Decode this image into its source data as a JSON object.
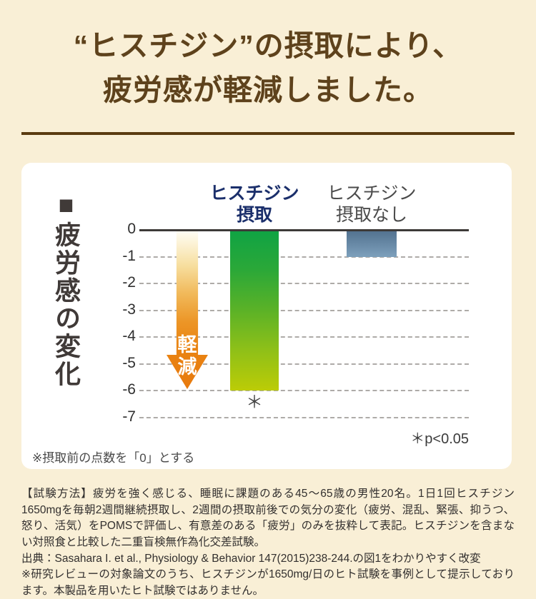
{
  "page": {
    "background_color": "#f9efd6"
  },
  "header": {
    "title_line1": "“ヒスチジン”の摂取により、",
    "title_line2": "疲労感が軽減しました。",
    "title_color": "#5e421c"
  },
  "chart_panel": {
    "axis_title": "■疲労感の変化",
    "treatment_label_line1": "ヒスチジン",
    "treatment_label_line2": "摂取",
    "control_label_line1": "ヒスチジン",
    "control_label_line2": "摂取なし",
    "arrow_char1": "軽",
    "arrow_char2": "減",
    "bar_annotation": "＊",
    "significance_note": "＊p<0.05",
    "baseline_note": "※摂取前の点数を「0」とする"
  },
  "chart_data": {
    "type": "bar",
    "title": "疲労感の変化",
    "categories": [
      "ヒスチジン摂取",
      "ヒスチジン摂取なし"
    ],
    "values": [
      -6,
      -1
    ],
    "xlabel": "",
    "ylabel": "疲労感の変化（摂取前の点数を0とする）",
    "ylim": [
      -7,
      0
    ],
    "yticks": [
      "0",
      "-1",
      "-2",
      "-3",
      "-4",
      "-5",
      "-6",
      "-7"
    ],
    "grid": "horizontal dashed, solid line at 0",
    "legend_position": "column labels above bars",
    "annotations": [
      "軽減 (orange downward arrow)",
      "＊ under ヒスチジン摂取 bar",
      "＊p<0.05",
      "※摂取前の点数を「0」とする"
    ],
    "colors": {
      "treatment_bar_top": "#0fa344",
      "treatment_bar_bottom": "#bccc06",
      "control_bar_top": "#51708e",
      "control_bar_bottom": "#7da0bc",
      "arrow_top": "#fffef7",
      "arrow_bottom": "#e87a0e",
      "treatment_label": "#1b2f6b",
      "control_label": "#4b4b4b"
    }
  },
  "footer": {
    "method": "【試験方法】疲労を強く感じる、睡眠に課題のある45〜65歳の男性20名。1日1回ヒスチジン1650mgを毎朝2週間継続摂取し、2週間の摂取前後での気分の変化（疲労、混乱、緊張、抑うつ、怒り、活気）をPOMSで評価し、有意差のある「疲労」のみを抜粋して表記。ヒスチジンを含まない対照食と比較した二重盲検無作為化交差試験。",
    "source": "出典：Sasahara I. et al., Physiology & Behavior 147(2015)238-244.の図1をわかりやすく改変",
    "disclaimer": "※研究レビューの対象論文のうち、ヒスチジンが1650mg/日のヒト試験を事例として提示しております。本製品を用いたヒト試験ではありません。"
  }
}
